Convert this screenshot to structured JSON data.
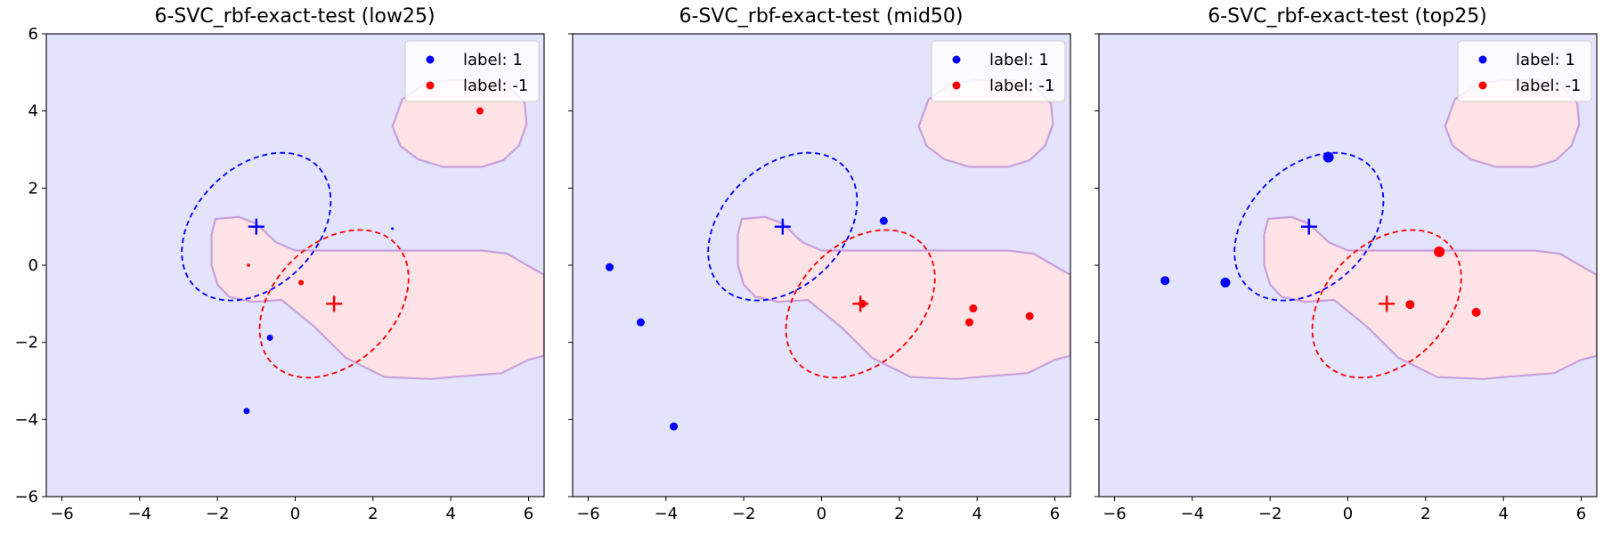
{
  "chart_data": [
    {
      "type": "scatter",
      "title": "6-SVC_rbf-exact-test (low25)",
      "xlim": [
        -6.4,
        6.4
      ],
      "ylim": [
        -6,
        6
      ],
      "xticks": [
        -6,
        -4,
        -2,
        0,
        2,
        4,
        6
      ],
      "yticks": [
        -6,
        -4,
        -2,
        0,
        2,
        4,
        6
      ],
      "yticklabels_shown": true,
      "legend": {
        "placement": "top-right",
        "entries": [
          "label: 1",
          "label: -1"
        ]
      },
      "colors": {
        "positive": "#0000ff",
        "negative": "#ff0000",
        "background": "#e3e3fc",
        "region": "#fde2e6",
        "boundary": "#c8a0dc"
      },
      "series": [
        {
          "name": "label: 1",
          "points": [
            [
              -0.65,
              -1.88,
              3.5
            ],
            [
              -1.25,
              -3.78,
              3.5
            ],
            [
              2.5,
              0.95,
              1.5
            ]
          ]
        },
        {
          "name": "label: -1",
          "points": [
            [
              4.75,
              4.0,
              4
            ],
            [
              0.15,
              -0.45,
              3
            ],
            [
              -1.2,
              0.0,
              1.8
            ]
          ]
        }
      ],
      "centers": [
        {
          "class": "label: 1",
          "x": -1,
          "y": 1
        },
        {
          "class": "label: -1",
          "x": 1,
          "y": -1
        }
      ]
    },
    {
      "type": "scatter",
      "title": "6-SVC_rbf-exact-test (mid50)",
      "xlim": [
        -6.4,
        6.4
      ],
      "ylim": [
        -6,
        6
      ],
      "xticks": [
        -6,
        -4,
        -2,
        0,
        2,
        4,
        6
      ],
      "yticks": [
        -6,
        -4,
        -2,
        0,
        2,
        4,
        6
      ],
      "yticklabels_shown": false,
      "legend": {
        "placement": "top-right",
        "entries": [
          "label: 1",
          "label: -1"
        ]
      },
      "colors": {
        "positive": "#0000ff",
        "negative": "#ff0000",
        "background": "#e3e3fc",
        "region": "#fde2e6",
        "boundary": "#c8a0dc"
      },
      "series": [
        {
          "name": "label: 1",
          "points": [
            [
              -5.45,
              -0.05,
              4.5
            ],
            [
              -4.65,
              -1.48,
              4.5
            ],
            [
              -3.8,
              -4.18,
              4.5
            ],
            [
              1.6,
              1.15,
              4.5
            ]
          ]
        },
        {
          "name": "label: -1",
          "points": [
            [
              3.9,
              -1.12,
              4.5
            ],
            [
              3.8,
              -1.48,
              4.5
            ],
            [
              5.35,
              -1.32,
              4.5
            ],
            [
              1.05,
              -1.0,
              4.5
            ]
          ]
        }
      ],
      "centers": [
        {
          "class": "label: 1",
          "x": -1,
          "y": 1
        },
        {
          "class": "label: -1",
          "x": 1,
          "y": -1
        }
      ]
    },
    {
      "type": "scatter",
      "title": "6-SVC_rbf-exact-test (top25)",
      "xlim": [
        -6.4,
        6.4
      ],
      "ylim": [
        -6,
        6
      ],
      "xticks": [
        -6,
        -4,
        -2,
        0,
        2,
        4,
        6
      ],
      "yticks": [
        -6,
        -4,
        -2,
        0,
        2,
        4,
        6
      ],
      "yticklabels_shown": false,
      "legend": {
        "placement": "top-right",
        "entries": [
          "label: 1",
          "label: -1"
        ]
      },
      "colors": {
        "positive": "#0000ff",
        "negative": "#ff0000",
        "background": "#e3e3fc",
        "region": "#fde2e6",
        "boundary": "#c8a0dc"
      },
      "series": [
        {
          "name": "label: 1",
          "points": [
            [
              -4.7,
              -0.4,
              5
            ],
            [
              -3.15,
              -0.45,
              5.5
            ],
            [
              -0.5,
              2.8,
              6
            ]
          ]
        },
        {
          "name": "label: -1",
          "points": [
            [
              2.35,
              0.35,
              6
            ],
            [
              1.6,
              -1.02,
              5
            ],
            [
              3.3,
              -1.22,
              5
            ]
          ]
        }
      ],
      "centers": [
        {
          "class": "label: 1",
          "x": -1,
          "y": 1
        },
        {
          "class": "label: -1",
          "x": 1,
          "y": -1
        }
      ]
    }
  ]
}
